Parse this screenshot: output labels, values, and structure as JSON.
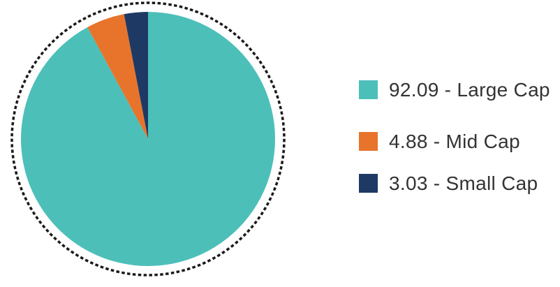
{
  "background_color": "#ffffff",
  "text_color": "#333333",
  "chart_data": {
    "type": "pie",
    "title": "",
    "unit": "percent",
    "direction": "clockwise",
    "start_angle_deg": 0,
    "legend_position": "right",
    "grid": false,
    "ring": {
      "style": "dashed",
      "color": "#1a1a1a"
    },
    "categories": [
      "Large Cap",
      "Mid Cap",
      "Small Cap"
    ],
    "values": [
      92.09,
      4.88,
      3.03
    ],
    "slices": [
      {
        "label": "Large Cap",
        "value": 92.09,
        "color": "#4CBFB9",
        "legend_text": "92.09 - Large Cap"
      },
      {
        "label": "Mid Cap",
        "value": 4.88,
        "color": "#E8742C",
        "legend_text": "4.88 - Mid Cap"
      },
      {
        "label": "Small Cap",
        "value": 3.03,
        "color": "#1E3A64",
        "legend_text": "3.03 - Small Cap"
      }
    ]
  }
}
